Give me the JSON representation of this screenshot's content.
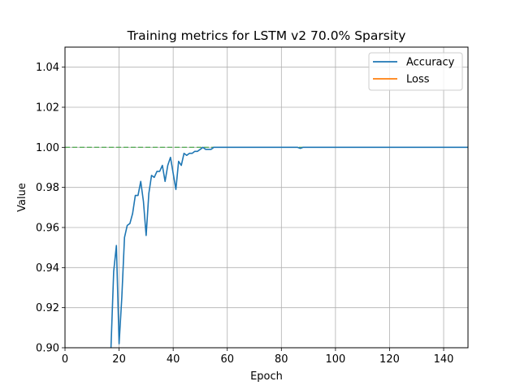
{
  "chart_data": {
    "type": "line",
    "title": "Training metrics for LSTM v2 70.0% Sparsity",
    "xlabel": "Epoch",
    "ylabel": "Value",
    "xlim": [
      0,
      149
    ],
    "ylim": [
      0.9,
      1.05
    ],
    "xticks": [
      0,
      20,
      40,
      60,
      80,
      100,
      120,
      140
    ],
    "yticks": [
      0.9,
      0.92,
      0.94,
      0.96,
      0.98,
      1.0,
      1.02,
      1.04
    ],
    "grid": true,
    "legend_position": "top-right",
    "series": [
      {
        "name": "Accuracy",
        "color": "#1f77b4",
        "x": [
          17,
          18,
          19,
          20,
          21,
          22,
          23,
          24,
          25,
          26,
          27,
          28,
          29,
          30,
          31,
          32,
          33,
          34,
          35,
          36,
          37,
          38,
          39,
          40,
          41,
          42,
          43,
          44,
          45,
          46,
          47,
          48,
          49,
          50,
          51,
          52,
          53,
          54,
          55,
          56,
          57,
          60,
          70,
          80,
          86,
          87,
          88,
          149
        ],
        "y": [
          0.9,
          0.938,
          0.951,
          0.902,
          0.925,
          0.955,
          0.961,
          0.962,
          0.967,
          0.976,
          0.976,
          0.983,
          0.973,
          0.956,
          0.977,
          0.986,
          0.985,
          0.988,
          0.988,
          0.991,
          0.983,
          0.991,
          0.995,
          0.987,
          0.979,
          0.993,
          0.991,
          0.997,
          0.996,
          0.997,
          0.997,
          0.998,
          0.998,
          0.999,
          1.0,
          0.999,
          0.999,
          0.999,
          1.0,
          1.0,
          1.0,
          1.0,
          1.0,
          1.0,
          1.0,
          0.9995,
          1.0,
          1.0
        ]
      },
      {
        "name": "Loss",
        "color": "#ff7f0e",
        "x": [],
        "y": []
      }
    ],
    "reference_line": {
      "y": 1.0,
      "color": "#2ca02c",
      "style": "dashed"
    }
  }
}
